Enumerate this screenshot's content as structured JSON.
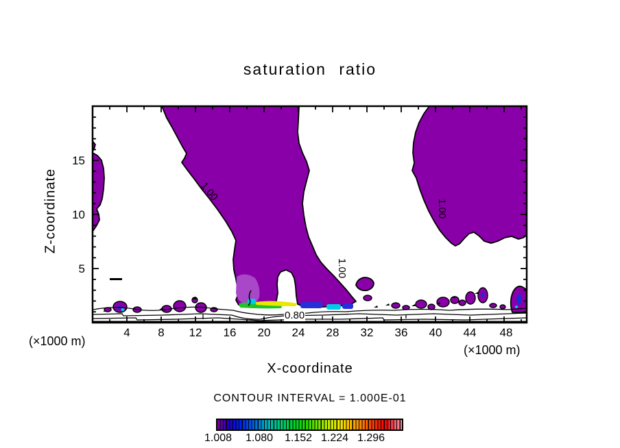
{
  "title": "saturation ratio",
  "axes": {
    "x_label": "X-coordinate",
    "y_label": "Z-coordinate",
    "x_unit_left": "(×1000 m)",
    "x_unit_right": "(×1000 m)",
    "x_tick_labels": [
      "4",
      "8",
      "12",
      "16",
      "20",
      "24",
      "28",
      "32",
      "36",
      "40",
      "44",
      "48"
    ],
    "y_tick_labels": [
      "15",
      "10",
      "5"
    ]
  },
  "footer": {
    "contour_interval_text": "CONTOUR INTERVAL = 1.000E-01"
  },
  "colorbar": {
    "tick_labels": [
      "1.008",
      "1.080",
      "1.152",
      "1.224",
      "1.296"
    ]
  },
  "colors": {
    "region_fill_purple": "#8A00A8",
    "contour_line": "#000000",
    "background": "#FFFFFF",
    "cell_blue": "#2430D8",
    "cell_cyan": "#00CCE8",
    "cell_green": "#1FC428",
    "cell_yellow": "#E8E800"
  },
  "chart_data": {
    "type": "heatmap",
    "style": "filled contour plot (vertical cross-section)",
    "title": "saturation ratio",
    "xlabel": "X-coordinate (×1000 m)",
    "ylabel": "Z-coordinate (×1000 m)",
    "xlim": [
      0,
      50.5
    ],
    "ylim": [
      0,
      20
    ],
    "x_ticks": [
      4,
      8,
      12,
      16,
      20,
      24,
      28,
      32,
      36,
      40,
      44,
      48
    ],
    "y_ticks": [
      5,
      10,
      15
    ],
    "grid": false,
    "contour_interval": 0.1,
    "colorbar": {
      "tick_values": [
        1.008,
        1.08,
        1.152,
        1.224,
        1.296
      ],
      "approx_range": [
        1.0,
        1.35
      ],
      "style": "discrete rainbow bar, ~60 black-separated segments, below plot"
    },
    "contour_line_labels": [
      {
        "value": "1.00",
        "x": 12.5,
        "z": 12.6,
        "rotation_deg": 50
      },
      {
        "value": "1.00",
        "x": 29.2,
        "z": 4.9,
        "rotation_deg": 90
      },
      {
        "value": "1.00",
        "x": 41.0,
        "z": 10.4,
        "rotation_deg": 90
      },
      {
        "value": "0.80",
        "x": 24.2,
        "z": 0.8,
        "rotation_deg": 0
      }
    ],
    "regions": [
      {
        "name": "central-plume",
        "description": "saturation ratio >= 1.0, purple fill; spans top of domain x≈8-24 at z=20, narrows downward reaching the surface near x≈17-31 with a narrow white notch at x≈21.5",
        "fill": "#8A00A8"
      },
      {
        "name": "upper-right-blob",
        "description": ">= 1.0 region, x≈37.5-50.5, z≈10-20, touching top and right edges",
        "fill": "#8A00A8"
      },
      {
        "name": "left-edge-strip",
        "description": "thin >= 1.0 strip attached to left axis, z≈8.5-15.7",
        "fill": "#8A00A8"
      },
      {
        "name": "surface-patches",
        "description": "many small >= 1.0 patches just above the surface (z≈0.5-2) across the whole domain",
        "fill": "#8A00A8"
      },
      {
        "name": "plume-base-cells",
        "description": "small cells of higher saturation (≈1.05-1.30; blue/cyan/green/yellow) at plume base, x≈17-30, z≈1-2",
        "fills": [
          "#2430D8",
          "#00CCE8",
          "#1FC428",
          "#E8E800"
        ]
      },
      {
        "name": "near-surface-contours",
        "description": "thin unlabeled contour lines (0.80, 0.90 ...) running horizontally just above the surface across the full width"
      }
    ]
  }
}
